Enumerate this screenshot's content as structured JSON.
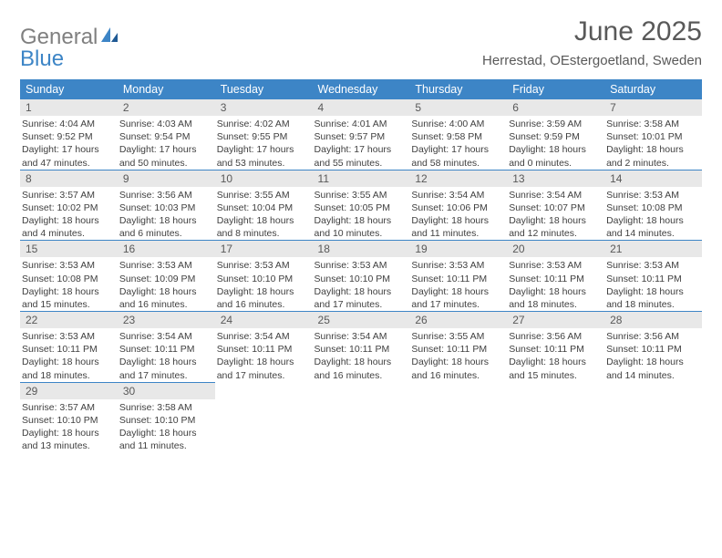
{
  "brand": {
    "word1": "General",
    "word2": "Blue"
  },
  "title": "June 2025",
  "subtitle": "Herrestad, OEstergoetland, Sweden",
  "colors": {
    "header_bg": "#3d85c6",
    "header_text": "#ffffff",
    "daybar_bg": "#e8e8e8",
    "text": "#595959",
    "body_text": "#404040",
    "page_bg": "#ffffff"
  },
  "typography": {
    "title_fontsize": 30,
    "subtitle_fontsize": 15,
    "header_fontsize": 12.5,
    "info_fontsize": 10.5
  },
  "day_headers": [
    "Sunday",
    "Monday",
    "Tuesday",
    "Wednesday",
    "Thursday",
    "Friday",
    "Saturday"
  ],
  "weeks": [
    [
      {
        "n": "1",
        "sr": "Sunrise: 4:04 AM",
        "ss": "Sunset: 9:52 PM",
        "d1": "Daylight: 17 hours",
        "d2": "and 47 minutes."
      },
      {
        "n": "2",
        "sr": "Sunrise: 4:03 AM",
        "ss": "Sunset: 9:54 PM",
        "d1": "Daylight: 17 hours",
        "d2": "and 50 minutes."
      },
      {
        "n": "3",
        "sr": "Sunrise: 4:02 AM",
        "ss": "Sunset: 9:55 PM",
        "d1": "Daylight: 17 hours",
        "d2": "and 53 minutes."
      },
      {
        "n": "4",
        "sr": "Sunrise: 4:01 AM",
        "ss": "Sunset: 9:57 PM",
        "d1": "Daylight: 17 hours",
        "d2": "and 55 minutes."
      },
      {
        "n": "5",
        "sr": "Sunrise: 4:00 AM",
        "ss": "Sunset: 9:58 PM",
        "d1": "Daylight: 17 hours",
        "d2": "and 58 minutes."
      },
      {
        "n": "6",
        "sr": "Sunrise: 3:59 AM",
        "ss": "Sunset: 9:59 PM",
        "d1": "Daylight: 18 hours",
        "d2": "and 0 minutes."
      },
      {
        "n": "7",
        "sr": "Sunrise: 3:58 AM",
        "ss": "Sunset: 10:01 PM",
        "d1": "Daylight: 18 hours",
        "d2": "and 2 minutes."
      }
    ],
    [
      {
        "n": "8",
        "sr": "Sunrise: 3:57 AM",
        "ss": "Sunset: 10:02 PM",
        "d1": "Daylight: 18 hours",
        "d2": "and 4 minutes."
      },
      {
        "n": "9",
        "sr": "Sunrise: 3:56 AM",
        "ss": "Sunset: 10:03 PM",
        "d1": "Daylight: 18 hours",
        "d2": "and 6 minutes."
      },
      {
        "n": "10",
        "sr": "Sunrise: 3:55 AM",
        "ss": "Sunset: 10:04 PM",
        "d1": "Daylight: 18 hours",
        "d2": "and 8 minutes."
      },
      {
        "n": "11",
        "sr": "Sunrise: 3:55 AM",
        "ss": "Sunset: 10:05 PM",
        "d1": "Daylight: 18 hours",
        "d2": "and 10 minutes."
      },
      {
        "n": "12",
        "sr": "Sunrise: 3:54 AM",
        "ss": "Sunset: 10:06 PM",
        "d1": "Daylight: 18 hours",
        "d2": "and 11 minutes."
      },
      {
        "n": "13",
        "sr": "Sunrise: 3:54 AM",
        "ss": "Sunset: 10:07 PM",
        "d1": "Daylight: 18 hours",
        "d2": "and 12 minutes."
      },
      {
        "n": "14",
        "sr": "Sunrise: 3:53 AM",
        "ss": "Sunset: 10:08 PM",
        "d1": "Daylight: 18 hours",
        "d2": "and 14 minutes."
      }
    ],
    [
      {
        "n": "15",
        "sr": "Sunrise: 3:53 AM",
        "ss": "Sunset: 10:08 PM",
        "d1": "Daylight: 18 hours",
        "d2": "and 15 minutes."
      },
      {
        "n": "16",
        "sr": "Sunrise: 3:53 AM",
        "ss": "Sunset: 10:09 PM",
        "d1": "Daylight: 18 hours",
        "d2": "and 16 minutes."
      },
      {
        "n": "17",
        "sr": "Sunrise: 3:53 AM",
        "ss": "Sunset: 10:10 PM",
        "d1": "Daylight: 18 hours",
        "d2": "and 16 minutes."
      },
      {
        "n": "18",
        "sr": "Sunrise: 3:53 AM",
        "ss": "Sunset: 10:10 PM",
        "d1": "Daylight: 18 hours",
        "d2": "and 17 minutes."
      },
      {
        "n": "19",
        "sr": "Sunrise: 3:53 AM",
        "ss": "Sunset: 10:11 PM",
        "d1": "Daylight: 18 hours",
        "d2": "and 17 minutes."
      },
      {
        "n": "20",
        "sr": "Sunrise: 3:53 AM",
        "ss": "Sunset: 10:11 PM",
        "d1": "Daylight: 18 hours",
        "d2": "and 18 minutes."
      },
      {
        "n": "21",
        "sr": "Sunrise: 3:53 AM",
        "ss": "Sunset: 10:11 PM",
        "d1": "Daylight: 18 hours",
        "d2": "and 18 minutes."
      }
    ],
    [
      {
        "n": "22",
        "sr": "Sunrise: 3:53 AM",
        "ss": "Sunset: 10:11 PM",
        "d1": "Daylight: 18 hours",
        "d2": "and 18 minutes."
      },
      {
        "n": "23",
        "sr": "Sunrise: 3:54 AM",
        "ss": "Sunset: 10:11 PM",
        "d1": "Daylight: 18 hours",
        "d2": "and 17 minutes."
      },
      {
        "n": "24",
        "sr": "Sunrise: 3:54 AM",
        "ss": "Sunset: 10:11 PM",
        "d1": "Daylight: 18 hours",
        "d2": "and 17 minutes."
      },
      {
        "n": "25",
        "sr": "Sunrise: 3:54 AM",
        "ss": "Sunset: 10:11 PM",
        "d1": "Daylight: 18 hours",
        "d2": "and 16 minutes."
      },
      {
        "n": "26",
        "sr": "Sunrise: 3:55 AM",
        "ss": "Sunset: 10:11 PM",
        "d1": "Daylight: 18 hours",
        "d2": "and 16 minutes."
      },
      {
        "n": "27",
        "sr": "Sunrise: 3:56 AM",
        "ss": "Sunset: 10:11 PM",
        "d1": "Daylight: 18 hours",
        "d2": "and 15 minutes."
      },
      {
        "n": "28",
        "sr": "Sunrise: 3:56 AM",
        "ss": "Sunset: 10:11 PM",
        "d1": "Daylight: 18 hours",
        "d2": "and 14 minutes."
      }
    ],
    [
      {
        "n": "29",
        "sr": "Sunrise: 3:57 AM",
        "ss": "Sunset: 10:10 PM",
        "d1": "Daylight: 18 hours",
        "d2": "and 13 minutes."
      },
      {
        "n": "30",
        "sr": "Sunrise: 3:58 AM",
        "ss": "Sunset: 10:10 PM",
        "d1": "Daylight: 18 hours",
        "d2": "and 11 minutes."
      },
      null,
      null,
      null,
      null,
      null
    ]
  ]
}
